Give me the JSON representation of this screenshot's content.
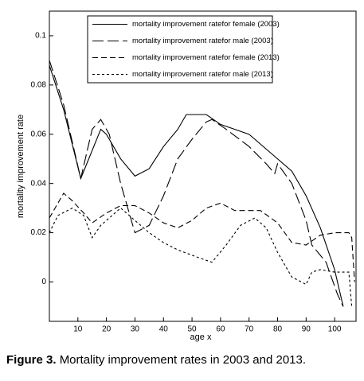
{
  "chart_data": {
    "type": "line",
    "x_label": "age x",
    "y_label": "mortality improvement rate",
    "caption_label": "Figure 3.",
    "caption": "Mortality improvement rates in 2003 and 2013.",
    "xlim": [
      0,
      107.5
    ],
    "ylim": [
      -0.016,
      0.11
    ],
    "xticks": [
      10,
      20,
      30,
      40,
      50,
      60,
      70,
      80,
      90,
      100
    ],
    "yticks": [
      0,
      0.02,
      0.04,
      0.06,
      0.08,
      0.1
    ],
    "legend": "top",
    "series": [
      {
        "name": "mortality improvement ratefor female (2003)",
        "color": "#000000",
        "dash": "none",
        "x": [
          0,
          5,
          11,
          18,
          20,
          25,
          30,
          35,
          40,
          45,
          48,
          55,
          60,
          70,
          78,
          85,
          90,
          95,
          100,
          103
        ],
        "values": [
          0.088,
          0.07,
          0.042,
          0.062,
          0.06,
          0.05,
          0.043,
          0.046,
          0.055,
          0.062,
          0.068,
          0.068,
          0.064,
          0.06,
          0.052,
          0.045,
          0.035,
          0.022,
          0.005,
          -0.01
        ]
      },
      {
        "name": "mortality improvement ratefor male (2003)",
        "color": "#000000",
        "dash": "14 5",
        "x": [
          0,
          5,
          11,
          15,
          18,
          21,
          25,
          30,
          35,
          40,
          45,
          50,
          55,
          57,
          62,
          70,
          76,
          79,
          80,
          85,
          90,
          92,
          97,
          101,
          103
        ],
        "values": [
          0.09,
          0.072,
          0.042,
          0.062,
          0.066,
          0.06,
          0.04,
          0.02,
          0.023,
          0.035,
          0.05,
          0.058,
          0.065,
          0.066,
          0.062,
          0.055,
          0.048,
          0.044,
          0.048,
          0.04,
          0.025,
          0.015,
          0.008,
          -0.005,
          -0.01
        ]
      },
      {
        "name": "mortality improvement ratefor female (2013)",
        "color": "#000000",
        "dash": "7 4",
        "x": [
          0,
          5,
          8,
          12,
          15,
          20,
          25,
          30,
          35,
          40,
          45,
          50,
          55,
          60,
          65,
          70,
          74,
          80,
          85,
          90,
          95,
          100,
          105,
          106,
          107
        ],
        "values": [
          0.026,
          0.036,
          0.033,
          0.028,
          0.024,
          0.028,
          0.031,
          0.031,
          0.028,
          0.024,
          0.022,
          0.025,
          0.03,
          0.032,
          0.029,
          0.029,
          0.029,
          0.024,
          0.016,
          0.015,
          0.019,
          0.02,
          0.02,
          0.018,
          0
        ]
      },
      {
        "name": "mortality improvement ratefor male (2013)",
        "color": "#000000",
        "dash": "3 3",
        "x": [
          0,
          3,
          8,
          12,
          15,
          18,
          22,
          25,
          30,
          35,
          40,
          45,
          52,
          57,
          62,
          67,
          72,
          76,
          80,
          85,
          90,
          92,
          95,
          100,
          105,
          106
        ],
        "values": [
          0.02,
          0.027,
          0.03,
          0.027,
          0.018,
          0.023,
          0.027,
          0.03,
          0.025,
          0.02,
          0.016,
          0.013,
          0.01,
          0.008,
          0.015,
          0.023,
          0.026,
          0.022,
          0.012,
          0.002,
          -0.001,
          0.004,
          0.005,
          0.004,
          0.004,
          -0.01
        ]
      }
    ]
  }
}
